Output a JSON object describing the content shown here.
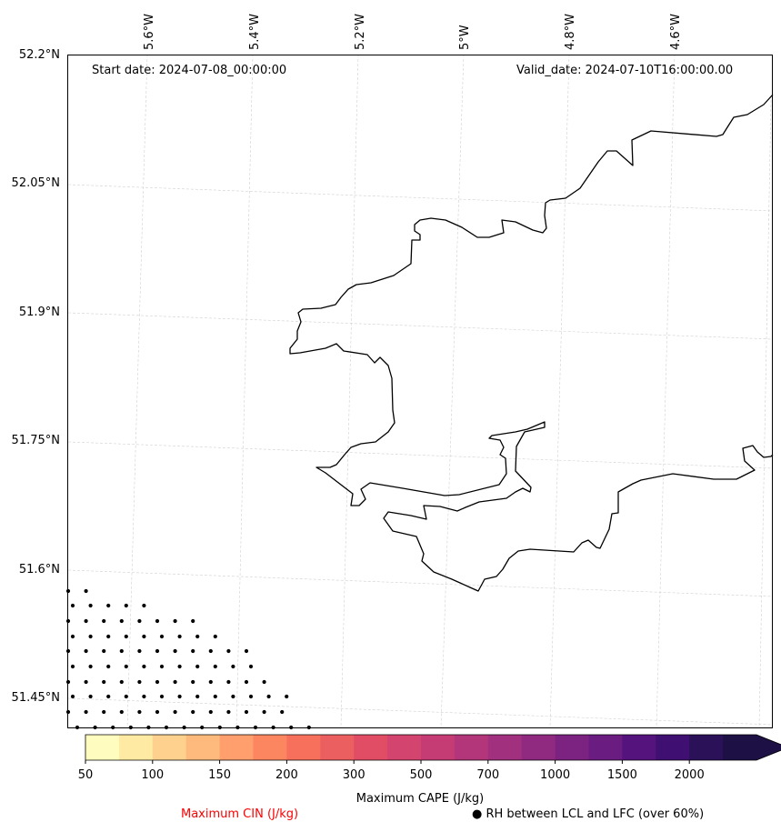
{
  "header": {
    "start_date": "Start date: 2024-07-08_00:00:00",
    "valid_date": "Valid_date: 2024-07-10T16:00:00.00"
  },
  "axes": {
    "lat_labels": [
      "52.2°N",
      "52.05°N",
      "51.9°N",
      "51.75°N",
      "51.6°N",
      "51.45°N"
    ],
    "lon_labels": [
      "5.6°W",
      "5.4°W",
      "5.2°W",
      "5°W",
      "4.8°W",
      "4.6°W"
    ]
  },
  "colorbar": {
    "ticks": [
      "50",
      "100",
      "150",
      "200",
      "300",
      "500",
      "700",
      "1000",
      "1500",
      "2000"
    ],
    "colors": [
      "#fefdbf",
      "#feeaa2",
      "#fed28e",
      "#feba7d",
      "#fe9f6d",
      "#fb8660",
      "#f7705c",
      "#ec5f60",
      "#e24d66",
      "#d3446e",
      "#c53c75",
      "#b4367a",
      "#a1307e",
      "#8f2a80",
      "#7c2382",
      "#6a1c81",
      "#55137d",
      "#3f0f72",
      "#2a1158",
      "#1c1044"
    ],
    "label": "Maximum CAPE (J/kg)"
  },
  "legend": {
    "cin_label": "Maximum CIN (J/kg)",
    "rh_label": "● RH between LCL and LFC (over 60%)"
  },
  "colors": {
    "cin_text": "#ff0000",
    "coastline": "#000000",
    "gridline": "#cccccc"
  }
}
